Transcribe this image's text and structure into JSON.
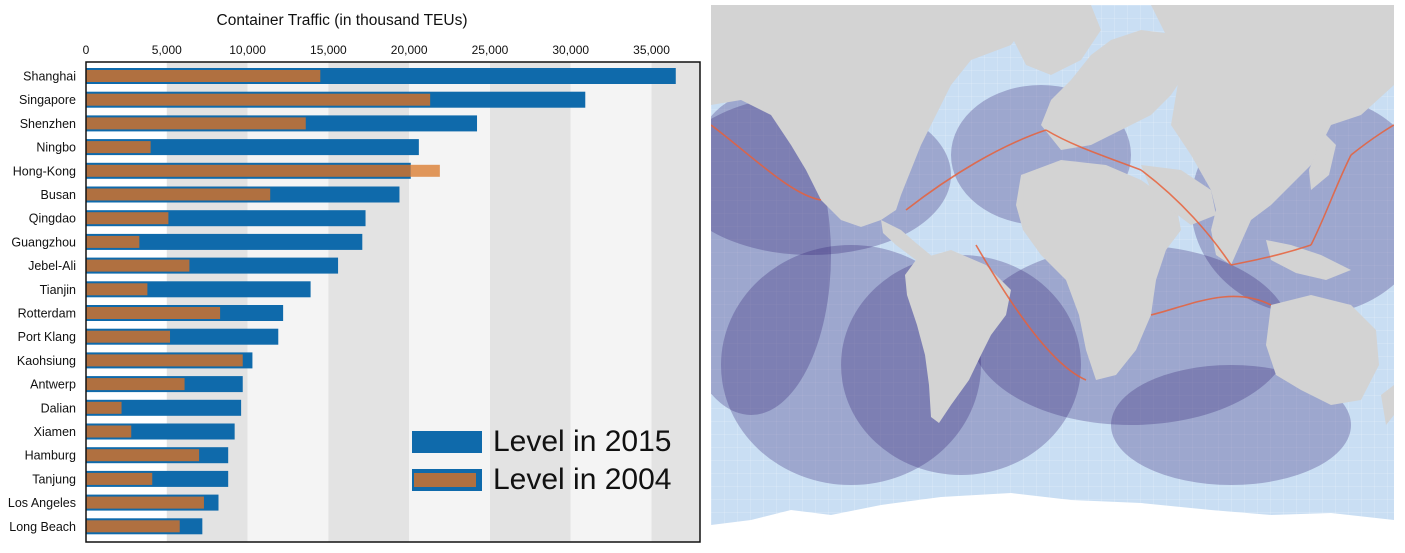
{
  "chart_data": {
    "type": "bar",
    "orientation": "horizontal",
    "title": "Container Traffic (in thousand TEUs)",
    "xlim": [
      0,
      38000
    ],
    "x_ticks": [
      0,
      5000,
      10000,
      15000,
      20000,
      25000,
      30000,
      35000
    ],
    "x_tick_labels": [
      "0",
      "5,000",
      "10,000",
      "15,000",
      "20,000",
      "25,000",
      "30,000",
      "35,000"
    ],
    "x_axis_position": "top",
    "grid": "alternating vertical bands",
    "legend_position": "bottom-right",
    "categories": [
      "Shanghai",
      "Singapore",
      "Shenzhen",
      "Ningbo",
      "Hong-Kong",
      "Busan",
      "Qingdao",
      "Guangzhou",
      "Jebel-Ali",
      "Tianjin",
      "Rotterdam",
      "Port Klang",
      "Kaohsiung",
      "Antwerp",
      "Dalian",
      "Xiamen",
      "Hamburg",
      "Tanjung",
      "Los Angeles",
      "Long Beach"
    ],
    "series": [
      {
        "name": "Level in 2015",
        "color": "#0f6aab",
        "values": [
          36500,
          30900,
          24200,
          20600,
          20100,
          19400,
          17300,
          17100,
          15600,
          13900,
          12200,
          11900,
          10300,
          9700,
          9600,
          9200,
          8800,
          8800,
          8200,
          7200
        ]
      },
      {
        "name": "Level in 2004",
        "color": "#b07040",
        "highlight_color": "#e0965a",
        "values": [
          14500,
          21300,
          13600,
          4000,
          21900,
          11400,
          5100,
          3300,
          6400,
          3800,
          8300,
          5200,
          9700,
          6100,
          2200,
          2800,
          7000,
          4100,
          7300,
          5800
        ]
      }
    ]
  },
  "map": {
    "colors": {
      "ocean": "#c9def3",
      "land": "#d3d3d3",
      "traffic_light": "#2a1a6e",
      "traffic_heavy": "#e8603a"
    }
  }
}
